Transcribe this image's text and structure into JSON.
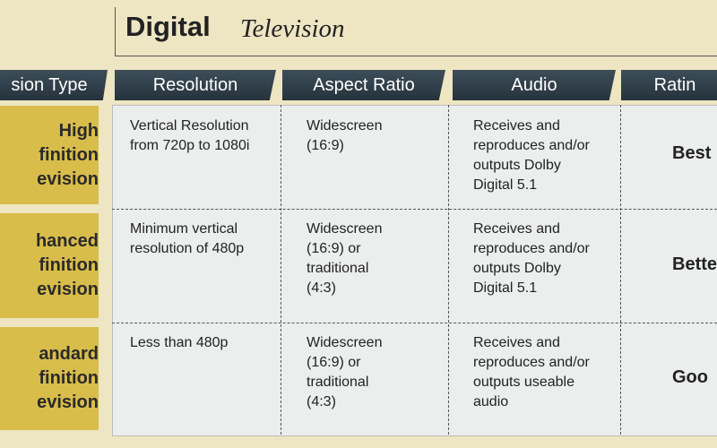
{
  "title": {
    "main": "Digital",
    "sub": "Television"
  },
  "columns": [
    "sion Type",
    "Resolution",
    "Aspect Ratio",
    "Audio",
    "Ratin"
  ],
  "rows": [
    {
      "label": [
        "High",
        "finition",
        "evision"
      ],
      "cells": [
        [
          "Vertical Resolution",
          "from 720p to 1080i"
        ],
        [
          "Widescreen",
          "(16:9)"
        ],
        [
          "Receives and",
          "reproduces and/or",
          "outputs Dolby",
          "Digital 5.1"
        ]
      ],
      "rating": "Best"
    },
    {
      "label": [
        "hanced",
        "finition",
        "evision"
      ],
      "cells": [
        [
          "Minimum vertical",
          "resolution of 480p"
        ],
        [
          "Widescreen",
          "(16:9) or",
          "traditional",
          "(4:3)"
        ],
        [
          "Receives and",
          "reproduces and/or",
          "outputs Dolby",
          "Digital 5.1"
        ]
      ],
      "rating": "Bette"
    },
    {
      "label": [
        "andard",
        "finition",
        "evision"
      ],
      "cells": [
        [
          "Less than 480p"
        ],
        [
          "Widescreen",
          "(16:9) or",
          "traditional",
          "(4:3)"
        ],
        [
          "Receives and",
          "reproduces and/or",
          "outputs useable",
          "audio"
        ]
      ],
      "rating": "Goo"
    }
  ]
}
